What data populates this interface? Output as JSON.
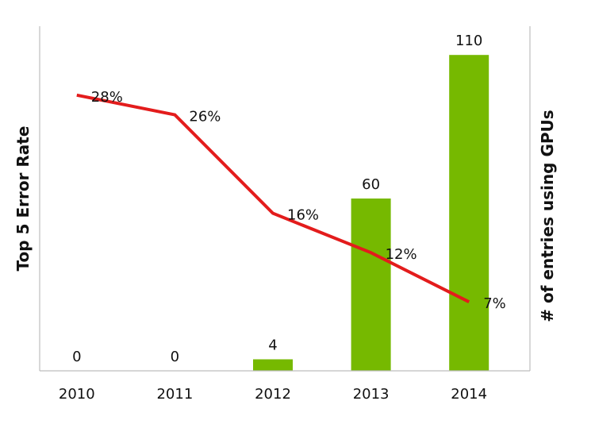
{
  "chart_data": {
    "type": "bar",
    "categories": [
      "2010",
      "2011",
      "2012",
      "2013",
      "2014"
    ],
    "xlabel": "",
    "ylabel": "Top 5 Error Rate",
    "y2label": "# of entries using GPUs",
    "series": [
      {
        "type": "bar",
        "axis": "right",
        "values": [
          0,
          0,
          4,
          60,
          110
        ],
        "labels": [
          "0",
          "0",
          "4",
          "60",
          "110"
        ],
        "color": "#76b900"
      },
      {
        "type": "line",
        "axis": "left",
        "values": [
          28,
          26,
          16,
          12,
          7
        ],
        "labels": [
          "28%",
          "26%",
          "16%",
          "12%",
          "7%"
        ],
        "color": "#e31c1c"
      }
    ],
    "ylim": [
      0,
      35
    ],
    "y2lim": [
      0,
      120
    ],
    "grid": false,
    "legend": "none"
  }
}
